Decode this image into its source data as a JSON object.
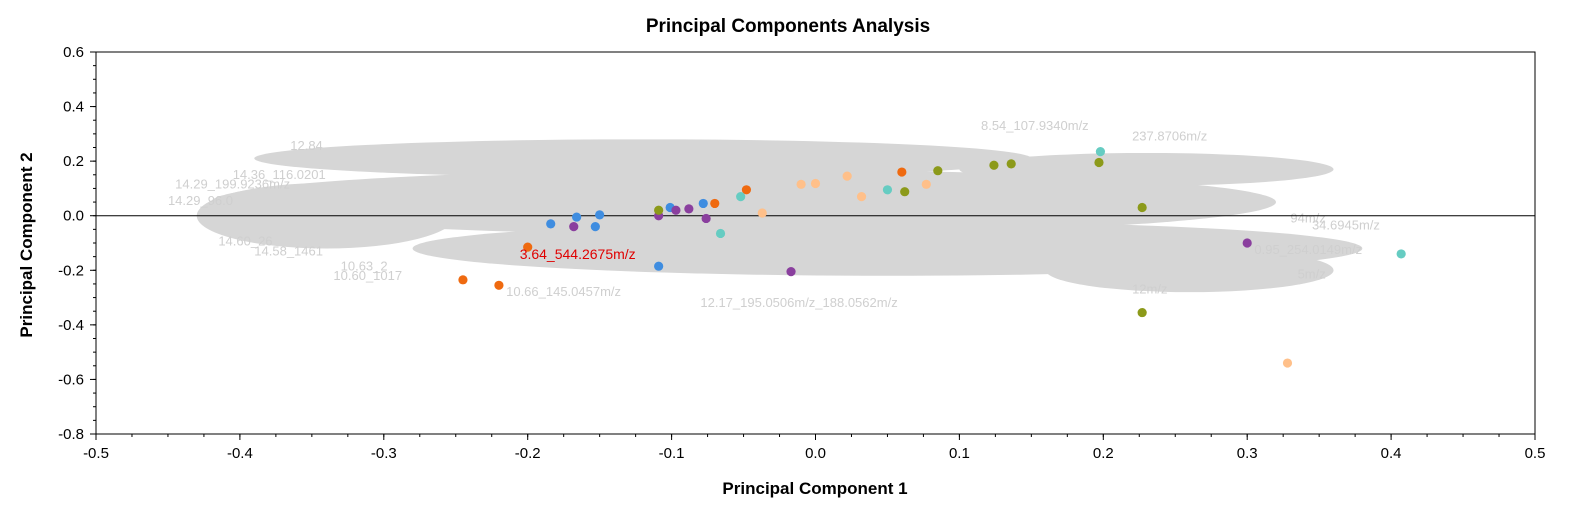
{
  "chart_data": {
    "type": "scatter",
    "title": "Principal Components Analysis",
    "xlabel": "Principal Component 1",
    "ylabel": "Principal Component 2",
    "xlim": [
      -0.5,
      0.5
    ],
    "ylim": [
      -0.8,
      0.6
    ],
    "x_ticks": [
      "-0.5",
      "-0.4",
      "-0.3",
      "-0.2",
      "-0.1",
      "0.0",
      "0.1",
      "0.2",
      "0.3",
      "0.4",
      "0.5"
    ],
    "y_ticks": [
      "0.6",
      "0.4",
      "0.2",
      "0.0",
      "-0.2",
      "-0.4",
      "-0.6",
      "-0.8"
    ],
    "grid": false,
    "zero_line": true,
    "highlight_label": {
      "text": "3.64_544.2675m/z",
      "x": -0.2,
      "y": -0.13,
      "color": "#e00000"
    },
    "background_labels": [
      {
        "text": "12.84",
        "x": -0.365,
        "y": 0.24
      },
      {
        "text": "14.36_116.0201",
        "x": -0.405,
        "y": 0.135
      },
      {
        "text": "14.29_199.9236m/z",
        "x": -0.445,
        "y": 0.1
      },
      {
        "text": "14.29_96.0",
        "x": -0.45,
        "y": 0.04
      },
      {
        "text": "14.60_26",
        "x": -0.415,
        "y": -0.11
      },
      {
        "text": "14.58_1461",
        "x": -0.39,
        "y": -0.145
      },
      {
        "text": "10.63_2",
        "x": -0.33,
        "y": -0.2
      },
      {
        "text": "10.60_1017",
        "x": -0.335,
        "y": -0.235
      },
      {
        "text": "10.66_145.0457m/z",
        "x": -0.215,
        "y": -0.295
      },
      {
        "text": "12.17_195.0506m/z_188.0562m/z",
        "x": -0.08,
        "y": -0.335
      },
      {
        "text": "8.54_107.9340m/z",
        "x": 0.115,
        "y": 0.315
      },
      {
        "text": "237.8706m/z",
        "x": 0.22,
        "y": 0.275
      },
      {
        "text": "94m/z",
        "x": 0.33,
        "y": -0.025
      },
      {
        "text": "34.6945m/z",
        "x": 0.345,
        "y": -0.05
      },
      {
        "text": "0.95_254.0149m/z",
        "x": 0.305,
        "y": -0.14
      },
      {
        "text": "5m/z",
        "x": 0.335,
        "y": -0.23
      },
      {
        "text": "12m/z",
        "x": 0.22,
        "y": -0.285
      }
    ],
    "series": [
      {
        "color": "#ef6a10",
        "points": [
          [
            -0.2,
            -0.115
          ],
          [
            -0.245,
            -0.235
          ],
          [
            -0.22,
            -0.255
          ],
          [
            -0.07,
            0.045
          ],
          [
            -0.048,
            0.095
          ],
          [
            0.06,
            0.16
          ]
        ]
      },
      {
        "color": "#3f8de0",
        "points": [
          [
            -0.184,
            -0.03
          ],
          [
            -0.166,
            -0.005
          ],
          [
            -0.153,
            -0.04
          ],
          [
            -0.15,
            0.003
          ],
          [
            -0.101,
            0.03
          ],
          [
            -0.078,
            0.045
          ],
          [
            -0.109,
            -0.185
          ]
        ]
      },
      {
        "color": "#8a3f9e",
        "points": [
          [
            -0.168,
            -0.04
          ],
          [
            -0.109,
            0.0
          ],
          [
            -0.097,
            0.02
          ],
          [
            -0.088,
            0.025
          ],
          [
            -0.076,
            -0.01
          ],
          [
            -0.017,
            -0.205
          ],
          [
            0.3,
            -0.1
          ]
        ]
      },
      {
        "color": "#66ccc2",
        "points": [
          [
            -0.052,
            0.07
          ],
          [
            -0.066,
            -0.065
          ],
          [
            0.05,
            0.095
          ],
          [
            0.198,
            0.235
          ],
          [
            0.407,
            -0.14
          ]
        ]
      },
      {
        "color": "#ffc08a",
        "points": [
          [
            -0.037,
            0.01
          ],
          [
            -0.01,
            0.115
          ],
          [
            0.0,
            0.118
          ],
          [
            0.022,
            0.145
          ],
          [
            0.032,
            0.07
          ],
          [
            0.077,
            0.115
          ],
          [
            0.328,
            -0.54
          ]
        ]
      },
      {
        "color": "#8c9a1a",
        "points": [
          [
            -0.109,
            0.02
          ],
          [
            0.062,
            0.088
          ],
          [
            0.085,
            0.165
          ],
          [
            0.124,
            0.185
          ],
          [
            0.136,
            0.19
          ],
          [
            0.197,
            0.195
          ],
          [
            0.227,
            0.03
          ],
          [
            0.227,
            -0.355
          ]
        ]
      }
    ]
  }
}
